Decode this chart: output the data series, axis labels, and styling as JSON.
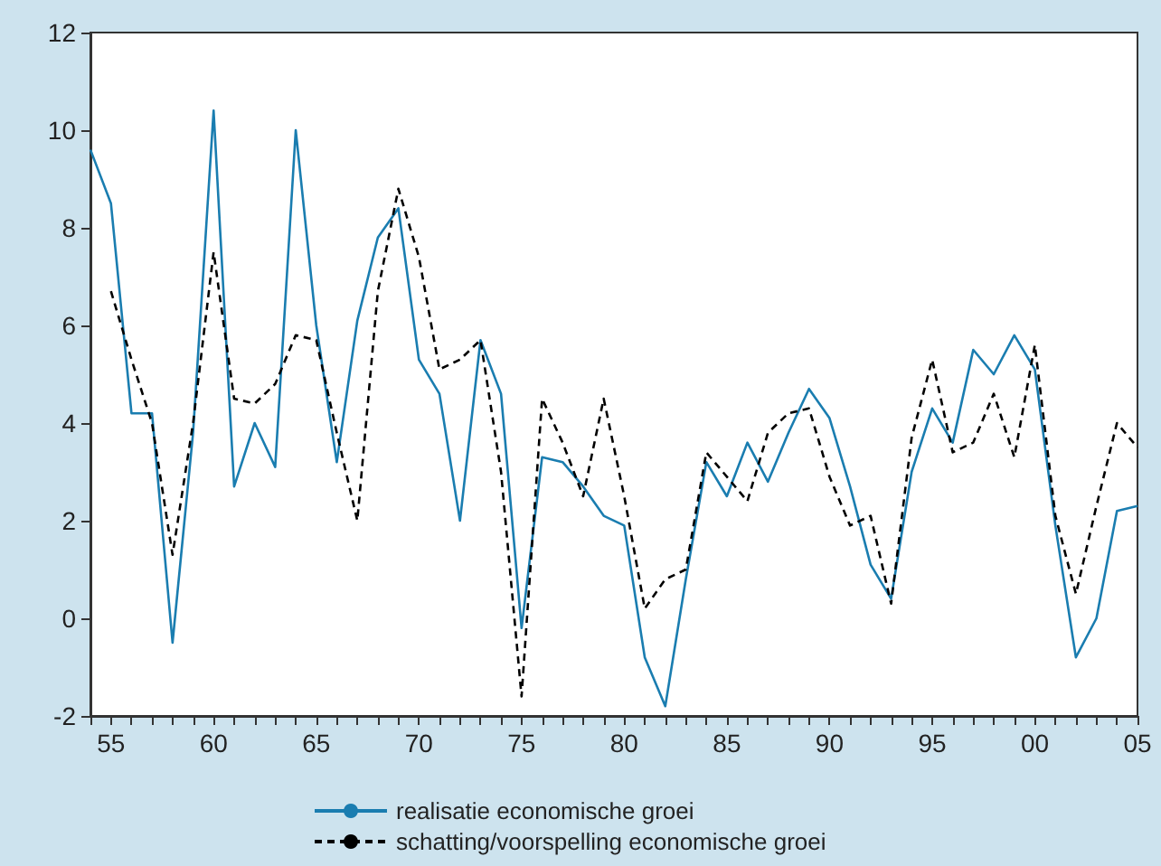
{
  "chart_data": {
    "type": "line",
    "x": [
      1954,
      1955,
      1956,
      1957,
      1958,
      1959,
      1960,
      1961,
      1962,
      1963,
      1964,
      1965,
      1966,
      1967,
      1968,
      1969,
      1970,
      1971,
      1972,
      1973,
      1974,
      1975,
      1976,
      1977,
      1978,
      1979,
      1980,
      1981,
      1982,
      1983,
      1984,
      1985,
      1986,
      1987,
      1988,
      1989,
      1990,
      1991,
      1992,
      1993,
      1994,
      1995,
      1996,
      1997,
      1998,
      1999,
      2000,
      2001,
      2002,
      2003,
      2004,
      2005
    ],
    "series": [
      {
        "name": "realisatie economische groei",
        "color": "#1a7db0",
        "line_style": "solid",
        "values": [
          9.6,
          8.5,
          4.2,
          4.2,
          -0.5,
          3.8,
          10.4,
          2.7,
          4.0,
          3.1,
          10.0,
          6.0,
          3.2,
          6.1,
          7.8,
          8.4,
          5.3,
          4.6,
          2.0,
          5.7,
          4.6,
          -0.2,
          3.3,
          3.2,
          2.7,
          2.1,
          1.9,
          -0.8,
          -1.8,
          0.8,
          3.2,
          2.5,
          3.6,
          2.8,
          3.8,
          4.7,
          4.1,
          2.7,
          1.1,
          0.4,
          3.0,
          4.3,
          3.6,
          5.5,
          5.0,
          5.8,
          5.1,
          1.9,
          -0.8,
          0.0,
          2.2,
          2.3
        ]
      },
      {
        "name": "schatting/voorspelling economische groei",
        "color": "#000000",
        "line_style": "dashed",
        "values": [
          null,
          6.7,
          5.3,
          4.0,
          1.3,
          4.0,
          7.5,
          4.5,
          4.4,
          4.8,
          5.8,
          5.7,
          3.8,
          2.0,
          6.7,
          8.8,
          7.4,
          5.1,
          5.3,
          5.7,
          3.0,
          -1.6,
          4.5,
          3.6,
          2.5,
          4.5,
          2.5,
          0.2,
          0.8,
          1.0,
          3.4,
          2.9,
          2.4,
          3.8,
          4.2,
          4.3,
          2.9,
          1.9,
          2.1,
          0.3,
          3.7,
          5.3,
          3.4,
          3.6,
          4.6,
          3.3,
          5.6,
          2.1,
          0.5,
          2.3,
          4.0,
          3.5
        ]
      }
    ],
    "xlim": [
      1954,
      2005
    ],
    "xticks": [
      {
        "value": 1954,
        "label": null
      },
      {
        "value": 1955,
        "label": "55"
      },
      {
        "value": 1956,
        "label": null
      },
      {
        "value": 1957,
        "label": null
      },
      {
        "value": 1958,
        "label": null
      },
      {
        "value": 1959,
        "label": null
      },
      {
        "value": 1960,
        "label": "60"
      },
      {
        "value": 1961,
        "label": null
      },
      {
        "value": 1962,
        "label": null
      },
      {
        "value": 1963,
        "label": null
      },
      {
        "value": 1964,
        "label": null
      },
      {
        "value": 1965,
        "label": "65"
      },
      {
        "value": 1966,
        "label": null
      },
      {
        "value": 1967,
        "label": null
      },
      {
        "value": 1968,
        "label": null
      },
      {
        "value": 1969,
        "label": null
      },
      {
        "value": 1970,
        "label": "70"
      },
      {
        "value": 1971,
        "label": null
      },
      {
        "value": 1972,
        "label": null
      },
      {
        "value": 1973,
        "label": null
      },
      {
        "value": 1974,
        "label": null
      },
      {
        "value": 1975,
        "label": "75"
      },
      {
        "value": 1976,
        "label": null
      },
      {
        "value": 1977,
        "label": null
      },
      {
        "value": 1978,
        "label": null
      },
      {
        "value": 1979,
        "label": null
      },
      {
        "value": 1980,
        "label": "80"
      },
      {
        "value": 1981,
        "label": null
      },
      {
        "value": 1982,
        "label": null
      },
      {
        "value": 1983,
        "label": null
      },
      {
        "value": 1984,
        "label": null
      },
      {
        "value": 1985,
        "label": "85"
      },
      {
        "value": 1986,
        "label": null
      },
      {
        "value": 1987,
        "label": null
      },
      {
        "value": 1988,
        "label": null
      },
      {
        "value": 1989,
        "label": null
      },
      {
        "value": 1990,
        "label": "90"
      },
      {
        "value": 1991,
        "label": null
      },
      {
        "value": 1992,
        "label": null
      },
      {
        "value": 1993,
        "label": null
      },
      {
        "value": 1994,
        "label": null
      },
      {
        "value": 1995,
        "label": "95"
      },
      {
        "value": 1996,
        "label": null
      },
      {
        "value": 1997,
        "label": null
      },
      {
        "value": 1998,
        "label": null
      },
      {
        "value": 1999,
        "label": null
      },
      {
        "value": 2000,
        "label": "00"
      },
      {
        "value": 2001,
        "label": null
      },
      {
        "value": 2002,
        "label": null
      },
      {
        "value": 2003,
        "label": null
      },
      {
        "value": 2004,
        "label": null
      },
      {
        "value": 2005,
        "label": "05"
      }
    ],
    "ylim": [
      -2,
      12
    ],
    "yticks": [
      -2,
      0,
      2,
      4,
      6,
      8,
      10,
      12
    ],
    "grid": false,
    "legend": "bottom",
    "marker": "none"
  }
}
